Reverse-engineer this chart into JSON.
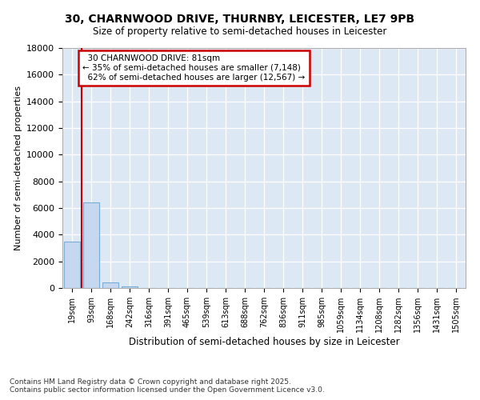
{
  "title1": "30, CHARNWOOD DRIVE, THURNBY, LEICESTER, LE7 9PB",
  "title2": "Size of property relative to semi-detached houses in Leicester",
  "xlabel": "Distribution of semi-detached houses by size in Leicester",
  "ylabel": "Number of semi-detached properties",
  "bar_categories": [
    "19sqm",
    "93sqm",
    "168sqm",
    "242sqm",
    "316sqm",
    "391sqm",
    "465sqm",
    "539sqm",
    "613sqm",
    "688sqm",
    "762sqm",
    "836sqm",
    "911sqm",
    "985sqm",
    "1059sqm",
    "1134sqm",
    "1208sqm",
    "1282sqm",
    "1356sqm",
    "1431sqm",
    "1505sqm"
  ],
  "bar_values": [
    3500,
    6400,
    400,
    100,
    0,
    0,
    0,
    0,
    0,
    0,
    0,
    0,
    0,
    0,
    0,
    0,
    0,
    0,
    0,
    0,
    0
  ],
  "bar_color": "#c5d8ef",
  "bar_edge_color": "#7aadd4",
  "property_label": "30 CHARNWOOD DRIVE: 81sqm",
  "pct_smaller": 35,
  "pct_larger": 62,
  "n_smaller": 7148,
  "n_larger": 12567,
  "vline_color": "#cc0000",
  "annotation_box_color": "#cc0000",
  "ylim": [
    0,
    18000
  ],
  "yticks": [
    0,
    2000,
    4000,
    6000,
    8000,
    10000,
    12000,
    14000,
    16000,
    18000
  ],
  "bg_color": "#dde8f5",
  "grid_color": "#c8d8ec",
  "footer1": "Contains HM Land Registry data © Crown copyright and database right 2025.",
  "footer2": "Contains public sector information licensed under the Open Government Licence v3.0."
}
